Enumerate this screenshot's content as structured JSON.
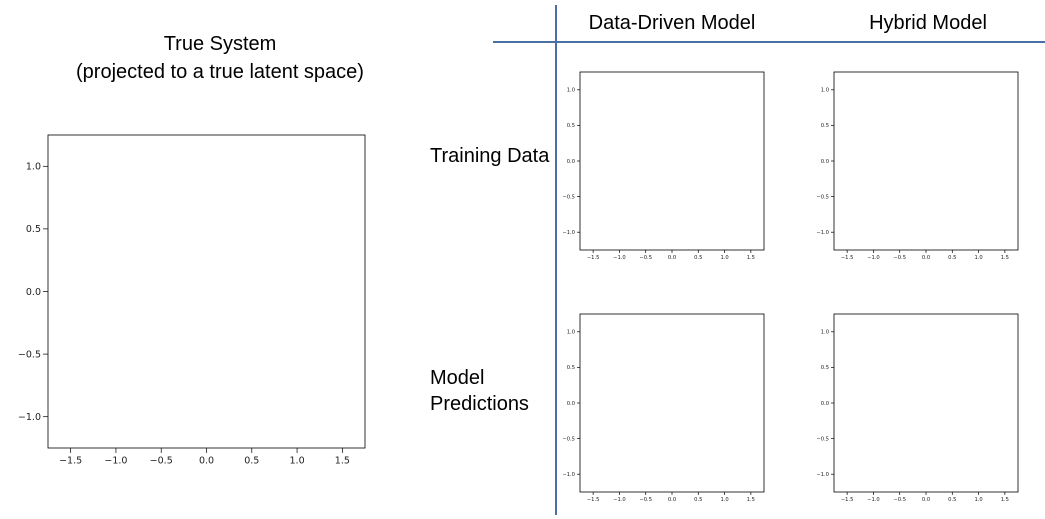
{
  "left_title": {
    "line1": "True System",
    "line2": "(projected to a true latent space)"
  },
  "columns": {
    "data_driven": "Data-Driven Model",
    "hybrid": "Hybrid Model"
  },
  "rows": {
    "training": "Training Data",
    "predictions_line1": "Model",
    "predictions_line2": "Predictions"
  },
  "colors": {
    "blue": "#0000ff",
    "red": "#ff0000",
    "green": "#008000",
    "rule": "#4a6fa5"
  },
  "chart_data": [
    {
      "id": "true-system",
      "type": "line",
      "xlim": [
        -1.75,
        1.75
      ],
      "ylim": [
        -1.25,
        1.25
      ],
      "x_ticks": [
        -1.5,
        -1.0,
        -0.5,
        0.0,
        0.5,
        1.0,
        1.5
      ],
      "y_ticks": [
        -1.0,
        -0.5,
        0.0,
        0.5,
        1.0
      ],
      "x_tick_labels": [
        "−1.5",
        "−1.0",
        "−0.5",
        "0.0",
        "0.5",
        "1.0",
        "1.5"
      ],
      "y_tick_labels": [
        "−1.0",
        "−0.5",
        "0.0",
        "0.5",
        "1.0"
      ],
      "series": [
        {
          "color": "blue"
        },
        {
          "color": "red"
        },
        {
          "color": "green"
        }
      ]
    },
    {
      "id": "dd-training",
      "type": "line",
      "xlim": [
        -1.75,
        1.75
      ],
      "ylim": [
        -1.25,
        1.25
      ],
      "x_ticks": [
        -1.5,
        -1.0,
        -0.5,
        0.0,
        0.5,
        1.0,
        1.5
      ],
      "y_ticks": [
        -1.0,
        -0.5,
        0.0,
        0.5,
        1.0
      ],
      "x_tick_labels": [
        "−1.5",
        "−1.0",
        "−0.5",
        "0.0",
        "0.5",
        "1.0",
        "1.5"
      ],
      "y_tick_labels": [
        "−1.0",
        "−0.5",
        "0.0",
        "0.5",
        "1.0"
      ],
      "series": [
        {
          "color": "red"
        }
      ]
    },
    {
      "id": "hybrid-training",
      "type": "line",
      "xlim": [
        -1.75,
        1.75
      ],
      "ylim": [
        -1.25,
        1.25
      ],
      "x_ticks": [
        -1.5,
        -1.0,
        -0.5,
        0.0,
        0.5,
        1.0,
        1.5
      ],
      "y_ticks": [
        -1.0,
        -0.5,
        0.0,
        0.5,
        1.0
      ],
      "x_tick_labels": [
        "−1.5",
        "−1.0",
        "−0.5",
        "0.0",
        "0.5",
        "1.0",
        "1.5"
      ],
      "y_tick_labels": [
        "−1.0",
        "−0.5",
        "0.0",
        "0.5",
        "1.0"
      ],
      "series": [
        {
          "color": "blue"
        },
        {
          "color": "red"
        },
        {
          "color": "green"
        }
      ]
    },
    {
      "id": "dd-predictions",
      "type": "line",
      "xlim": [
        -1.75,
        1.75
      ],
      "ylim": [
        -1.25,
        1.25
      ],
      "x_ticks": [
        -1.5,
        -1.0,
        -0.5,
        0.0,
        0.5,
        1.0,
        1.5
      ],
      "y_ticks": [
        -1.0,
        -0.5,
        0.0,
        0.5,
        1.0
      ],
      "x_tick_labels": [
        "−1.5",
        "−1.0",
        "−0.5",
        "0.0",
        "0.5",
        "1.0",
        "1.5"
      ],
      "y_tick_labels": [
        "−1.0",
        "−0.5",
        "0.0",
        "0.5",
        "1.0"
      ],
      "series": [
        {
          "color": "blue"
        },
        {
          "color": "red"
        },
        {
          "color": "green"
        }
      ]
    },
    {
      "id": "hybrid-predictions",
      "type": "line",
      "xlim": [
        -1.75,
        1.75
      ],
      "ylim": [
        -1.25,
        1.25
      ],
      "x_ticks": [
        -1.5,
        -1.0,
        -0.5,
        0.0,
        0.5,
        1.0,
        1.5
      ],
      "y_ticks": [
        -1.0,
        -0.5,
        0.0,
        0.5,
        1.0
      ],
      "x_tick_labels": [
        "−1.5",
        "−1.0",
        "−0.5",
        "0.0",
        "0.5",
        "1.0",
        "1.5"
      ],
      "y_tick_labels": [
        "−1.0",
        "−0.5",
        "0.0",
        "0.5",
        "1.0"
      ],
      "series": [
        {
          "color": "blue"
        },
        {
          "color": "red"
        },
        {
          "color": "green"
        }
      ]
    }
  ]
}
